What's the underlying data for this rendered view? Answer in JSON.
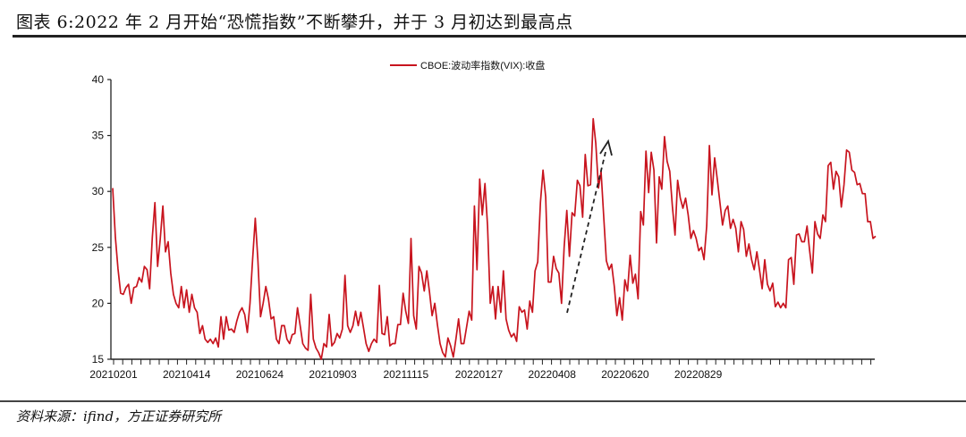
{
  "header": {
    "title": "图表 6:2022 年 2 月开始“恐慌指数”不断攀升，并于 3 月初达到最高点"
  },
  "footer": {
    "source": "资料来源：ifind，方正证券研究所"
  },
  "chart_data": {
    "type": "line",
    "title": "",
    "xlabel": "",
    "ylabel": "",
    "ylim": [
      15,
      40
    ],
    "yticks": [
      40,
      35,
      30,
      25,
      20,
      15
    ],
    "xtick_labels": [
      "20210201",
      "20210414",
      "20210624",
      "20210903",
      "20211115",
      "20220127",
      "20220408",
      "20220620",
      "20220829"
    ],
    "grid": false,
    "legend": "top-center",
    "series": [
      {
        "name": "CBOE:波动率指数(VIX):收盘",
        "color": "#c8141e",
        "values": [
          30.3,
          25.9,
          23.1,
          20.9,
          20.8,
          21.4,
          21.7,
          20.0,
          21.4,
          21.5,
          22.3,
          21.9,
          23.3,
          23.0,
          21.3,
          25.9,
          29.0,
          23.3,
          25.7,
          28.7,
          24.6,
          25.5,
          22.7,
          20.8,
          20.0,
          19.6,
          21.5,
          19.6,
          21.2,
          19.2,
          20.8,
          19.6,
          19.2,
          17.3,
          18.0,
          16.8,
          16.5,
          16.8,
          16.4,
          16.9,
          16.1,
          18.8,
          16.8,
          18.8,
          17.6,
          17.7,
          17.4,
          18.4,
          19.2,
          19.6,
          19.0,
          17.4,
          20.0,
          23.9,
          27.6,
          23.9,
          18.8,
          20.0,
          21.5,
          20.4,
          18.6,
          18.8,
          16.8,
          16.4,
          18.0,
          18.0,
          16.8,
          16.4,
          17.2,
          17.3,
          19.6,
          18.0,
          16.4,
          16.0,
          15.8,
          20.8,
          16.8,
          16.0,
          15.6,
          15.0,
          16.4,
          16.1,
          19.0,
          16.2,
          16.5,
          17.3,
          16.9,
          17.7,
          22.5,
          18.0,
          17.4,
          18.0,
          19.3,
          18.0,
          19.2,
          17.8,
          16.4,
          15.7,
          16.4,
          16.8,
          16.5,
          21.6,
          17.3,
          17.2,
          18.8,
          16.2,
          16.4,
          16.4,
          18.1,
          18.1,
          20.9,
          19.3,
          18.2,
          25.8,
          18.9,
          17.7,
          23.3,
          22.7,
          21.1,
          22.9,
          21.0,
          18.9,
          20.0,
          18.1,
          16.4,
          15.6,
          15.2,
          16.9,
          16.2,
          15.2,
          16.8,
          18.6,
          16.4,
          16.4,
          17.8,
          19.3,
          18.5,
          28.7,
          23.0,
          31.1,
          27.9,
          30.7,
          26.9,
          20.0,
          21.5,
          18.6,
          21.5,
          19.2,
          22.9,
          18.6,
          17.6,
          17.0,
          17.3,
          16.6,
          19.7,
          19.2,
          19.4,
          17.7,
          20.2,
          19.2,
          22.9,
          23.7,
          29.0,
          31.9,
          29.5,
          21.9,
          21.9,
          24.2,
          23.1,
          22.7,
          20.0,
          25.0,
          28.3,
          24.2,
          28.1,
          27.8,
          31.0,
          30.5,
          27.7,
          33.3,
          30.5,
          30.6,
          36.5,
          34.3,
          30.3,
          31.8,
          27.7,
          23.8,
          23.0,
          23.5,
          21.5,
          18.9,
          20.5,
          18.5,
          22.1,
          21.1,
          24.3,
          21.8,
          22.6,
          20.4,
          28.2,
          27.0,
          33.6,
          29.9,
          33.5,
          31.9,
          25.4,
          31.3,
          30.2,
          34.9,
          32.7,
          31.8,
          28.7,
          26.1,
          31.0,
          29.4,
          28.5,
          29.4,
          27.9,
          25.8,
          26.5,
          25.8,
          24.7,
          25.0,
          23.9,
          26.9,
          34.1,
          29.7,
          33.0,
          31.1,
          29.0,
          27.0,
          28.3,
          28.7,
          26.7,
          27.5,
          26.7,
          24.6,
          27.3,
          26.6,
          24.2,
          25.3,
          23.9,
          23.0,
          24.6,
          23.0,
          21.3,
          23.9,
          21.7,
          21.1,
          21.8,
          19.7,
          20.1,
          19.6,
          20.0,
          19.6,
          23.9,
          24.1,
          21.7,
          26.1,
          26.2,
          25.5,
          25.5,
          26.9,
          24.7,
          22.7,
          27.3,
          26.2,
          25.8,
          27.9,
          27.3,
          32.3,
          32.6,
          30.2,
          31.8,
          31.3,
          28.6,
          30.6,
          33.7,
          33.5,
          31.9,
          31.7,
          30.6,
          30.7,
          29.8,
          29.8,
          27.3,
          27.3,
          25.8,
          26.0
        ]
      }
    ],
    "annotations": [
      {
        "type": "dashed-arrow",
        "meaning": "rising trend"
      }
    ]
  }
}
